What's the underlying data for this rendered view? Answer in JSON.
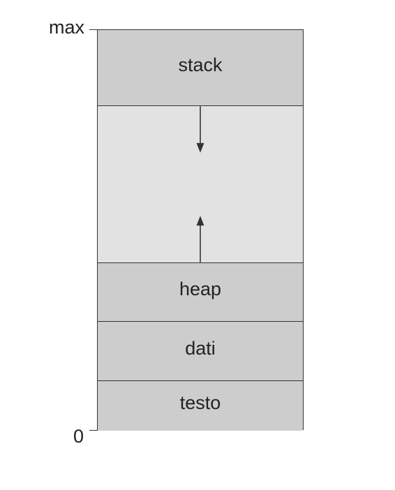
{
  "axis": {
    "top_label": "max",
    "bottom_label": "0"
  },
  "segments": [
    {
      "label": "stack"
    },
    {
      "label": ""
    },
    {
      "label": "heap"
    },
    {
      "label": "dati"
    },
    {
      "label": "testo"
    }
  ],
  "arrows": {
    "stack_growth": "down-arrow-icon",
    "heap_growth": "up-arrow-icon"
  },
  "colors": {
    "segment_fill": "#cdcdcd",
    "free_space_fill": "#e2e2e2",
    "outline": "#333333",
    "text": "#222222"
  }
}
